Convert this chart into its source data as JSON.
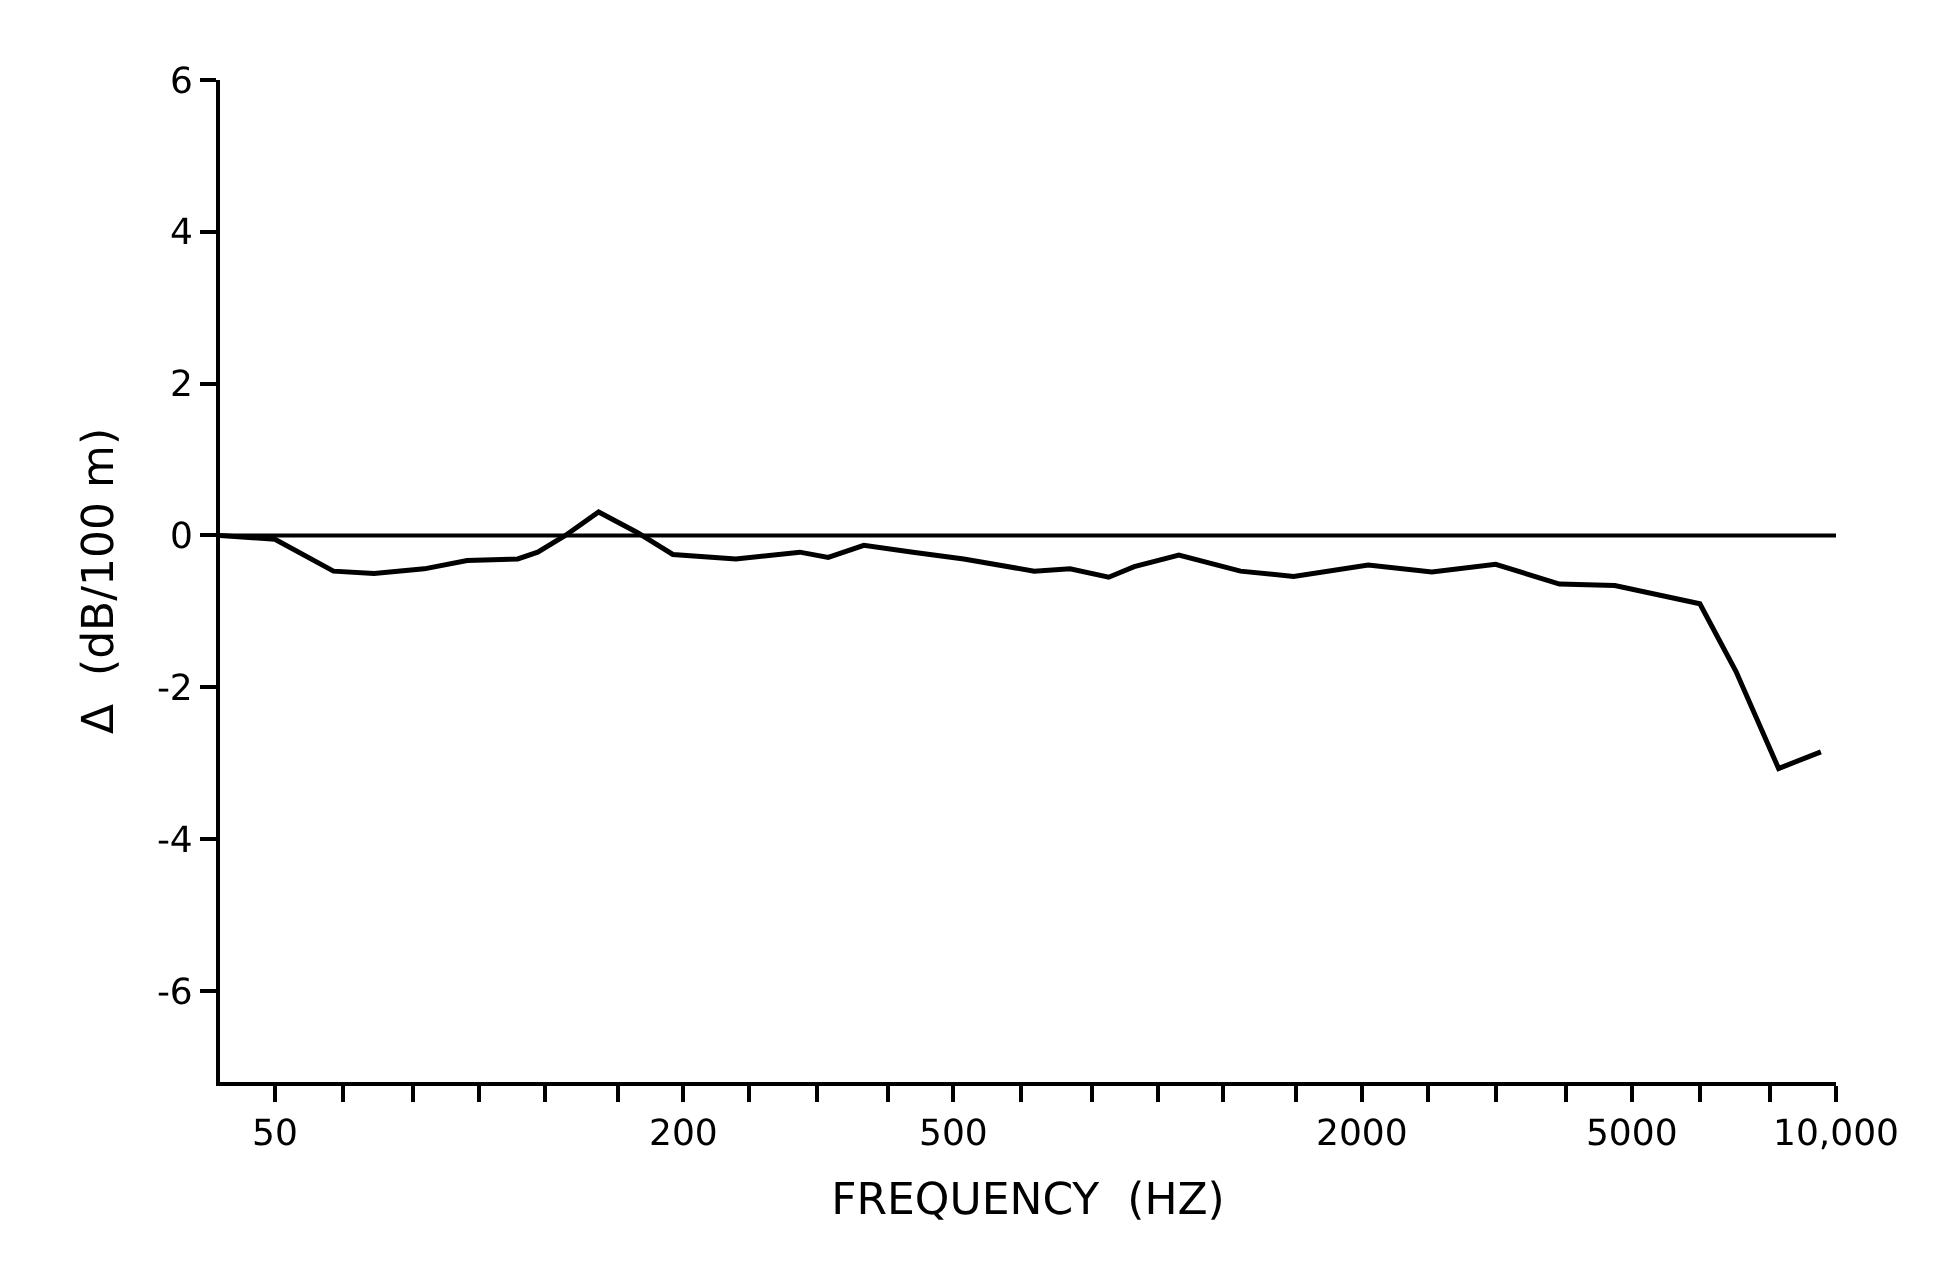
{
  "chart_data": {
    "type": "line",
    "xlabel": "FREQUENCY  (HZ)",
    "ylabel": "Δ  (dB/100 m)",
    "log": "x",
    "grid": false,
    "marker": "none",
    "line_style": "solid",
    "xlim": [
      41.5,
      10000
    ],
    "ylim": [
      -7.2,
      6
    ],
    "xticks": [
      50,
      {
        "value": 63,
        "label": null
      },
      {
        "value": 80,
        "label": null
      },
      {
        "value": 100,
        "label": null
      },
      {
        "value": 125,
        "label": null
      },
      {
        "value": 160,
        "label": null
      },
      200,
      {
        "value": 250,
        "label": null
      },
      {
        "value": 315,
        "label": null
      },
      {
        "value": 400,
        "label": null
      },
      500,
      {
        "value": 630,
        "label": null
      },
      {
        "value": 800,
        "label": null
      },
      {
        "value": 1000,
        "label": null
      },
      {
        "value": 1250,
        "label": null
      },
      {
        "value": 1600,
        "label": null
      },
      2000,
      {
        "value": 2500,
        "label": null
      },
      {
        "value": 3150,
        "label": null
      },
      {
        "value": 4000,
        "label": null
      },
      5000,
      {
        "value": 6300,
        "label": null
      },
      {
        "value": 8000,
        "label": null
      },
      {
        "value": 10000,
        "label": "10,000"
      }
    ],
    "yticks": [
      6,
      4,
      2,
      0,
      -2,
      -4,
      -6
    ],
    "ref_lines": [
      {
        "axis": "y",
        "value": 0,
        "color": "#000000"
      }
    ],
    "series": [
      {
        "color": "#000000",
        "x": [
          41.5,
          50,
          61,
          70,
          83,
          96,
          114,
          122,
          134,
          150,
          171,
          193,
          239,
          297,
          327,
          369,
          436,
          518,
          658,
          743,
          847,
          924,
          1075,
          1325,
          1587,
          2044,
          2537,
          3150,
          3912,
          4720,
          6300,
          7120,
          8230,
          9500
        ],
        "values": [
          0,
          -0.05,
          -0.47,
          -0.5,
          -0.44,
          -0.33,
          -0.31,
          -0.22,
          0,
          0.31,
          0.04,
          -0.25,
          -0.31,
          -0.22,
          -0.29,
          -0.13,
          -0.22,
          -0.31,
          -0.47,
          -0.44,
          -0.55,
          -0.41,
          -0.26,
          -0.47,
          -0.54,
          -0.39,
          -0.48,
          -0.38,
          -0.64,
          -0.66,
          -0.9,
          -1.79,
          -3.07,
          -2.85
        ]
      }
    ]
  }
}
